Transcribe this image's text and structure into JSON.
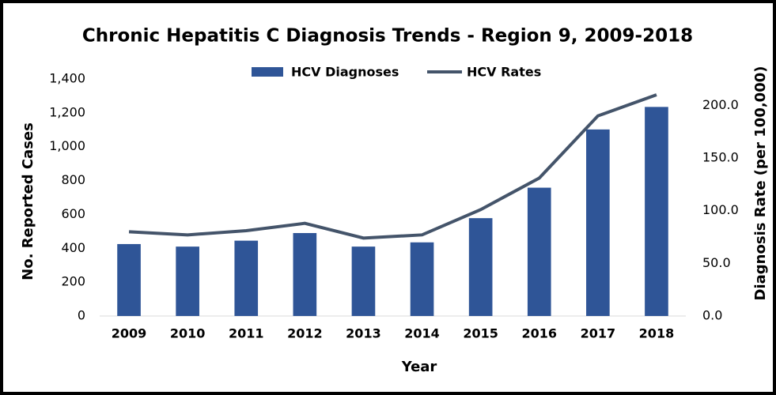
{
  "chart_data": {
    "type": "bar-line",
    "title": "Chronic Hepatitis C Diagnosis Trends - Region 9, 2009-2018",
    "x_label": "Year",
    "y_label": "No. Reported Cases",
    "y2_label": "Diagnosis Rate (per 100,000)",
    "categories": [
      "2009",
      "2010",
      "2011",
      "2012",
      "2013",
      "2014",
      "2015",
      "2016",
      "2017",
      "2018"
    ],
    "series": [
      {
        "name": "HCV Diagnoses",
        "kind": "bar",
        "color": "#2f5597",
        "values": [
          425,
          410,
          445,
          490,
          410,
          435,
          578,
          758,
          1102,
          1235
        ]
      },
      {
        "name": "HCV Rates",
        "kind": "line",
        "axis": "y2",
        "color": "#44546a",
        "values": [
          80,
          77,
          81,
          88,
          74,
          77,
          101,
          131,
          190,
          210
        ]
      }
    ],
    "ylim": [
      0,
      1400
    ],
    "yticks": [
      0,
      200,
      400,
      600,
      800,
      {
        "value": 1000,
        "label": "1,000"
      },
      {
        "value": 1200,
        "label": "1,200"
      },
      {
        "value": 1400,
        "label": "1,400"
      }
    ],
    "y2lim": [
      0,
      225
    ],
    "y2ticks": [
      {
        "value": 0,
        "label": "0.0"
      },
      {
        "value": 50,
        "label": "50.0"
      },
      {
        "value": 100,
        "label": "100.0"
      },
      {
        "value": 150,
        "label": "150.0"
      },
      {
        "value": 200,
        "label": "200.0"
      }
    ],
    "grid": false,
    "legend": "top"
  }
}
